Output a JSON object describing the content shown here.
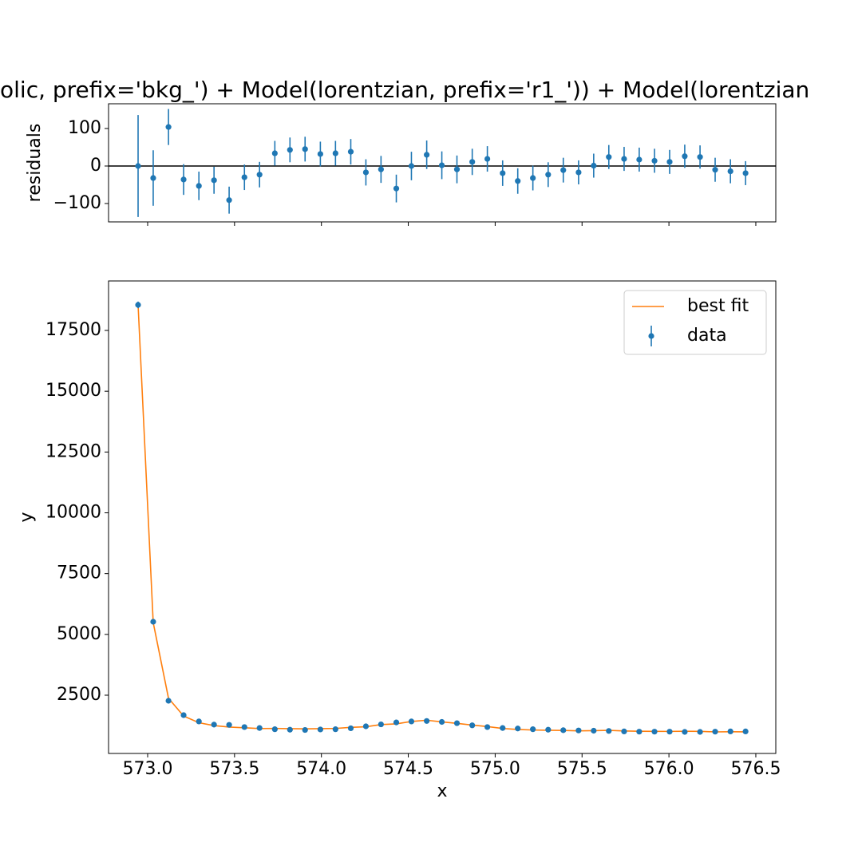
{
  "chart_data": [
    {
      "type": "residuals",
      "title": "olic, prefix='bkg_') + Model(lorentzian, prefix='r1_')) + Model(lorentzian",
      "ylabel": "residuals",
      "x": [
        572.945,
        573.032,
        573.12,
        573.207,
        573.295,
        573.382,
        573.469,
        573.557,
        573.644,
        573.732,
        573.819,
        573.906,
        573.994,
        574.081,
        574.169,
        574.256,
        574.343,
        574.431,
        574.518,
        574.606,
        574.693,
        574.78,
        574.868,
        574.955,
        575.043,
        575.13,
        575.217,
        575.305,
        575.392,
        575.48,
        575.567,
        575.654,
        575.742,
        575.829,
        575.917,
        576.004,
        576.091,
        576.179,
        576.266,
        576.354,
        576.441
      ],
      "series": [
        {
          "name": "residuals",
          "color": "#1f77b4",
          "values": [
            0,
            -32,
            104,
            -36,
            -53,
            -38,
            -91,
            -30,
            -23,
            34,
            43,
            45,
            32,
            34,
            38,
            -17,
            -9,
            -60,
            0,
            30,
            2,
            -9,
            11,
            19,
            -19,
            -40,
            -32,
            -23,
            -11,
            -17,
            1,
            24,
            19,
            17,
            14,
            11,
            26,
            24,
            -10,
            -14,
            -19
          ],
          "errors": [
            136,
            74,
            48,
            41,
            38,
            36,
            36,
            34,
            34,
            33,
            33,
            33,
            33,
            33,
            34,
            35,
            36,
            37,
            38,
            38,
            37,
            37,
            35,
            34,
            34,
            34,
            33,
            33,
            33,
            32,
            32,
            32,
            32,
            32,
            32,
            32,
            31,
            31,
            32,
            32,
            32
          ]
        }
      ],
      "hline": 0,
      "xlim": [
        572.775,
        576.615
      ],
      "xticks": [
        573,
        573.5,
        574,
        574.5,
        575,
        575.5,
        576,
        576.5
      ],
      "ylim": [
        -149,
        166
      ],
      "yticks": [
        {
          "value": -100,
          "label": "−100"
        },
        0,
        100
      ]
    },
    {
      "type": "fit",
      "xlabel": "x",
      "ylabel": "y",
      "x": [
        572.945,
        573.032,
        573.12,
        573.207,
        573.295,
        573.382,
        573.469,
        573.557,
        573.644,
        573.732,
        573.819,
        573.906,
        573.994,
        574.081,
        574.169,
        574.256,
        574.343,
        574.431,
        574.518,
        574.606,
        574.693,
        574.78,
        574.868,
        574.955,
        575.043,
        575.13,
        575.217,
        575.305,
        575.392,
        575.48,
        575.567,
        575.654,
        575.742,
        575.829,
        575.917,
        576.004,
        576.091,
        576.179,
        576.266,
        576.354,
        576.441
      ],
      "series": [
        {
          "name": "best fit",
          "color": "#ff7f0e",
          "kind": "line",
          "values": [
            18550,
            5488,
            2374,
            1644,
            1367,
            1252,
            1189,
            1160,
            1127,
            1134,
            1123,
            1115,
            1122,
            1134,
            1178,
            1203,
            1291,
            1320,
            1420,
            1470,
            1402,
            1341,
            1271,
            1209,
            1131,
            1090,
            1068,
            1057,
            1049,
            1033,
            1041,
            1054,
            1029,
            1017,
            1014,
            1011,
            1016,
            1014,
            990,
            996,
            991
          ]
        },
        {
          "name": "data",
          "color": "#1f77b4",
          "kind": "errorbar",
          "values": [
            18550,
            5520,
            2270,
            1680,
            1420,
            1290,
            1280,
            1190,
            1150,
            1100,
            1080,
            1070,
            1090,
            1100,
            1140,
            1220,
            1300,
            1380,
            1420,
            1440,
            1400,
            1350,
            1260,
            1190,
            1150,
            1130,
            1100,
            1080,
            1060,
            1050,
            1040,
            1030,
            1010,
            1000,
            1000,
            1000,
            990,
            990,
            1000,
            1010,
            1010
          ],
          "errors": [
            136,
            74,
            48,
            41,
            38,
            36,
            36,
            34,
            34,
            33,
            33,
            33,
            33,
            33,
            34,
            35,
            36,
            37,
            38,
            38,
            37,
            37,
            35,
            34,
            34,
            34,
            33,
            33,
            33,
            32,
            32,
            32,
            32,
            32,
            32,
            32,
            31,
            31,
            32,
            32,
            32
          ]
        }
      ],
      "legend": "upper right",
      "xlim": [
        572.775,
        576.615
      ],
      "xticks": [
        {
          "value": 573,
          "label": "573.0"
        },
        573.5,
        {
          "value": 574,
          "label": "574.0"
        },
        574.5,
        {
          "value": 575,
          "label": "575.0"
        },
        575.5,
        {
          "value": 576,
          "label": "576.0"
        },
        576.5
      ],
      "ylim": [
        104,
        19535
      ],
      "yticks": [
        2500,
        5000,
        7500,
        10000,
        12500,
        15000,
        17500
      ]
    }
  ]
}
